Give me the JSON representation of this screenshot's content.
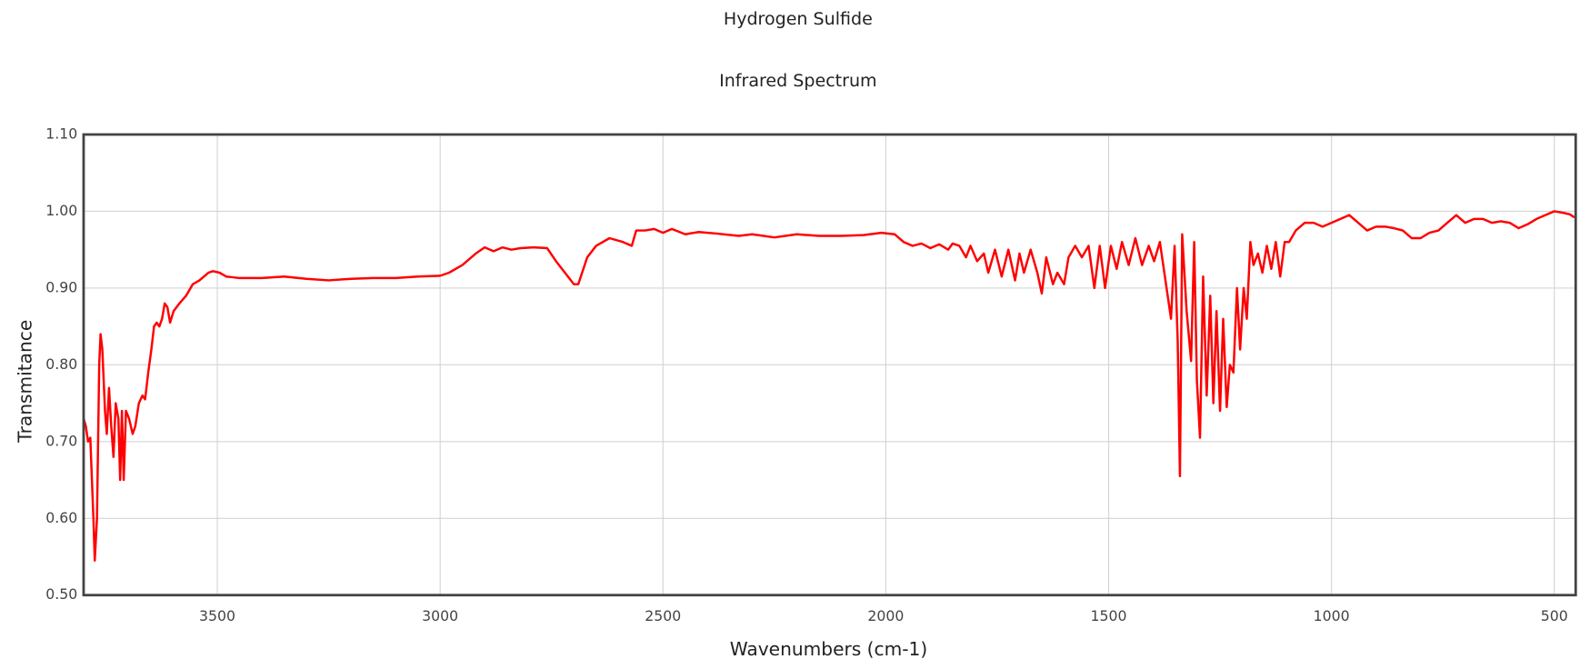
{
  "chart_data": {
    "type": "line",
    "title": "Hydrogen Sulfide",
    "subtitle": "Infrared Spectrum",
    "x_label": "Wavenumbers (cm-1)",
    "y_label": "Transmitance",
    "color": "#ff0000",
    "grid": true,
    "xlim": [
      3800,
      452
    ],
    "ylim": [
      0.5,
      1.1
    ],
    "xticks": [
      3500,
      3000,
      2500,
      2000,
      1500,
      1000,
      500
    ],
    "yticks": [
      {
        "value": 0.5,
        "label": "0.50"
      },
      {
        "value": 0.6,
        "label": "0.60"
      },
      {
        "value": 0.7,
        "label": "0.70"
      },
      {
        "value": 0.8,
        "label": "0.80"
      },
      {
        "value": 0.9,
        "label": "0.90"
      },
      {
        "value": 1.0,
        "label": "1.00"
      },
      {
        "value": 1.1,
        "label": "1.10"
      }
    ],
    "x": [
      3800,
      3795,
      3790,
      3785,
      3778,
      3775,
      3770,
      3765,
      3762,
      3758,
      3752,
      3748,
      3743,
      3738,
      3733,
      3728,
      3722,
      3718,
      3714,
      3710,
      3705,
      3698,
      3690,
      3684,
      3676,
      3668,
      3662,
      3655,
      3648,
      3642,
      3636,
      3630,
      3624,
      3618,
      3612,
      3606,
      3598,
      3585,
      3570,
      3555,
      3540,
      3520,
      3510,
      3495,
      3480,
      3450,
      3400,
      3350,
      3300,
      3250,
      3200,
      3150,
      3100,
      3050,
      3000,
      2980,
      2950,
      2920,
      2900,
      2880,
      2860,
      2840,
      2820,
      2790,
      2760,
      2740,
      2720,
      2700,
      2690,
      2670,
      2650,
      2620,
      2590,
      2570,
      2560,
      2540,
      2520,
      2500,
      2480,
      2450,
      2420,
      2380,
      2330,
      2300,
      2250,
      2200,
      2150,
      2100,
      2050,
      2010,
      1980,
      1960,
      1940,
      1920,
      1900,
      1880,
      1860,
      1850,
      1835,
      1820,
      1810,
      1795,
      1780,
      1770,
      1755,
      1740,
      1725,
      1710,
      1700,
      1690,
      1675,
      1660,
      1650,
      1640,
      1625,
      1615,
      1600,
      1590,
      1575,
      1560,
      1545,
      1532,
      1520,
      1508,
      1495,
      1482,
      1470,
      1455,
      1440,
      1425,
      1410,
      1398,
      1385,
      1370,
      1360,
      1352,
      1345,
      1340,
      1335,
      1325,
      1315,
      1308,
      1302,
      1295,
      1288,
      1280,
      1272,
      1265,
      1258,
      1250,
      1243,
      1235,
      1228,
      1220,
      1212,
      1205,
      1197,
      1190,
      1182,
      1175,
      1165,
      1155,
      1145,
      1135,
      1125,
      1115,
      1105,
      1095,
      1080,
      1060,
      1040,
      1020,
      1000,
      980,
      960,
      940,
      920,
      900,
      880,
      860,
      840,
      820,
      800,
      780,
      760,
      740,
      720,
      700,
      680,
      660,
      640,
      620,
      600,
      580,
      560,
      540,
      520,
      500,
      480,
      465,
      455
    ],
    "values": [
      0.73,
      0.72,
      0.7,
      0.705,
      0.6,
      0.545,
      0.6,
      0.8,
      0.84,
      0.82,
      0.74,
      0.71,
      0.77,
      0.72,
      0.68,
      0.75,
      0.73,
      0.65,
      0.74,
      0.65,
      0.74,
      0.73,
      0.71,
      0.72,
      0.75,
      0.76,
      0.755,
      0.79,
      0.82,
      0.85,
      0.855,
      0.85,
      0.86,
      0.88,
      0.875,
      0.855,
      0.87,
      0.88,
      0.89,
      0.905,
      0.91,
      0.92,
      0.922,
      0.92,
      0.915,
      0.913,
      0.913,
      0.915,
      0.912,
      0.91,
      0.912,
      0.913,
      0.913,
      0.915,
      0.916,
      0.92,
      0.93,
      0.945,
      0.953,
      0.948,
      0.953,
      0.95,
      0.952,
      0.953,
      0.952,
      0.935,
      0.92,
      0.905,
      0.905,
      0.94,
      0.955,
      0.965,
      0.96,
      0.955,
      0.975,
      0.975,
      0.977,
      0.972,
      0.977,
      0.97,
      0.973,
      0.971,
      0.968,
      0.97,
      0.966,
      0.97,
      0.968,
      0.968,
      0.969,
      0.972,
      0.97,
      0.96,
      0.955,
      0.958,
      0.952,
      0.957,
      0.95,
      0.958,
      0.955,
      0.94,
      0.955,
      0.935,
      0.945,
      0.92,
      0.95,
      0.915,
      0.95,
      0.91,
      0.945,
      0.92,
      0.95,
      0.92,
      0.893,
      0.94,
      0.905,
      0.92,
      0.905,
      0.94,
      0.955,
      0.94,
      0.955,
      0.9,
      0.955,
      0.9,
      0.955,
      0.925,
      0.96,
      0.93,
      0.965,
      0.93,
      0.955,
      0.935,
      0.96,
      0.9,
      0.86,
      0.955,
      0.83,
      0.655,
      0.97,
      0.87,
      0.805,
      0.96,
      0.78,
      0.705,
      0.915,
      0.76,
      0.89,
      0.75,
      0.87,
      0.74,
      0.86,
      0.745,
      0.8,
      0.79,
      0.9,
      0.82,
      0.9,
      0.86,
      0.96,
      0.93,
      0.945,
      0.92,
      0.955,
      0.925,
      0.96,
      0.915,
      0.96,
      0.96,
      0.975,
      0.985,
      0.985,
      0.98,
      0.985,
      0.99,
      0.995,
      0.985,
      0.975,
      0.98,
      0.98,
      0.978,
      0.975,
      0.965,
      0.965,
      0.972,
      0.975,
      0.985,
      0.995,
      0.985,
      0.99,
      0.99,
      0.985,
      0.987,
      0.985,
      0.978,
      0.983,
      0.99,
      0.995,
      1.0,
      0.998,
      0.996,
      0.992
    ]
  }
}
